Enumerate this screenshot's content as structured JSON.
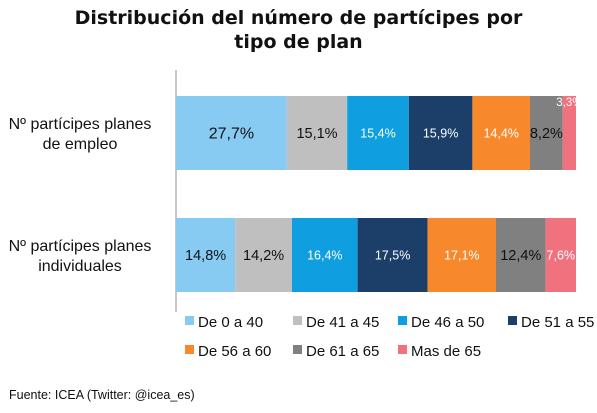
{
  "title_lines": [
    "Distribución  del número de partícipes por",
    "tipo de plan"
  ],
  "footer": "Fuente: ICEA (Twitter: @icea_es)",
  "chart_data": {
    "type": "bar",
    "orientation": "horizontal",
    "stacked": true,
    "categories": [
      [
        "Nº partícipes planes",
        "de empleo"
      ],
      [
        "Nº partícipes planes",
        "individuales"
      ]
    ],
    "xlim": [
      0,
      100
    ],
    "grid": false,
    "legend_position": "bottom",
    "series": [
      {
        "name": "De 0 a 40",
        "color": "#87cbf2",
        "values": [
          27.7,
          14.8
        ],
        "labels": [
          "27,7%",
          "14,8%"
        ],
        "label_color": "#111111"
      },
      {
        "name": "De 41 a 45",
        "color": "#bfbfbf",
        "values": [
          15.1,
          14.2
        ],
        "labels": [
          "15,1%",
          "14,2%"
        ],
        "label_color": "#111111"
      },
      {
        "name": "De 46 a 50",
        "color": "#0f9fe0",
        "values": [
          15.4,
          16.4
        ],
        "labels": [
          "15,4%",
          "16,4%"
        ],
        "label_color": "#ffffff"
      },
      {
        "name": "De 51 a 55",
        "color": "#1b3f68",
        "values": [
          15.9,
          17.5
        ],
        "labels": [
          "15,9%",
          "17,5%"
        ],
        "label_color": "#ffffff"
      },
      {
        "name": "De 56 a 60",
        "color": "#f7892c",
        "values": [
          14.4,
          17.1
        ],
        "labels": [
          "14,4%",
          "17,1%"
        ],
        "label_color": "#ffffff"
      },
      {
        "name": "De 61 a 65",
        "color": "#808080",
        "values": [
          8.2,
          12.4
        ],
        "labels": [
          "8,2%",
          "12,4%"
        ],
        "label_color": "#111111"
      },
      {
        "name": "Mas de 65",
        "color": "#f0727e",
        "values": [
          3.3,
          7.6
        ],
        "labels": [
          "3,3%",
          "7,6%"
        ],
        "label_color": "#ffffff"
      }
    ]
  }
}
